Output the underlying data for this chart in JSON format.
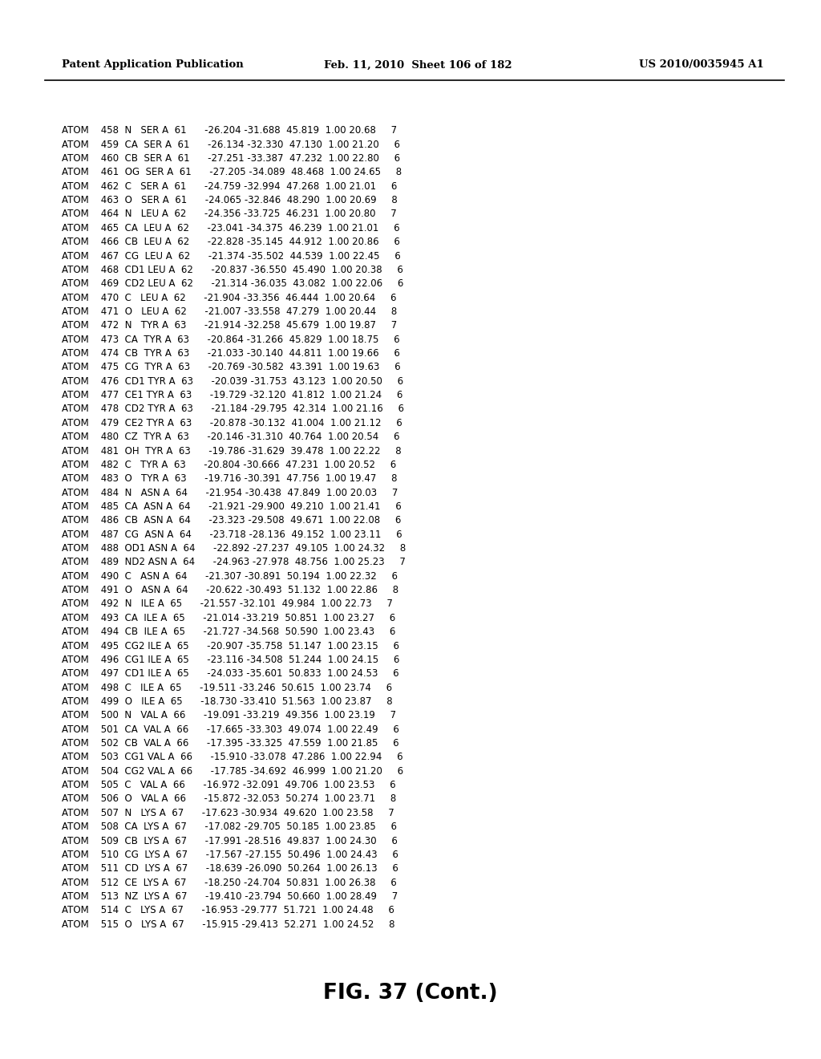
{
  "header_left": "Patent Application Publication",
  "header_middle": "Feb. 11, 2010  Sheet 106 of 182",
  "header_right": "US 2010/0035945 A1",
  "footer": "FIG. 37 (Cont.)",
  "rows": [
    "ATOM    458  N   SER A  61      -26.204 -31.688  45.819  1.00 20.68     7",
    "ATOM    459  CA  SER A  61      -26.134 -32.330  47.130  1.00 21.20     6",
    "ATOM    460  CB  SER A  61      -27.251 -33.387  47.232  1.00 22.80     6",
    "ATOM    461  OG  SER A  61      -27.205 -34.089  48.468  1.00 24.65     8",
    "ATOM    462  C   SER A  61      -24.759 -32.994  47.268  1.00 21.01     6",
    "ATOM    463  O   SER A  61      -24.065 -32.846  48.290  1.00 20.69     8",
    "ATOM    464  N   LEU A  62      -24.356 -33.725  46.231  1.00 20.80     7",
    "ATOM    465  CA  LEU A  62      -23.041 -34.375  46.239  1.00 21.01     6",
    "ATOM    466  CB  LEU A  62      -22.828 -35.145  44.912  1.00 20.86     6",
    "ATOM    467  CG  LEU A  62      -21.374 -35.502  44.539  1.00 22.45     6",
    "ATOM    468  CD1 LEU A  62      -20.837 -36.550  45.490  1.00 20.38     6",
    "ATOM    469  CD2 LEU A  62      -21.314 -36.035  43.082  1.00 22.06     6",
    "ATOM    470  C   LEU A  62      -21.904 -33.356  46.444  1.00 20.64     6",
    "ATOM    471  O   LEU A  62      -21.007 -33.558  47.279  1.00 20.44     8",
    "ATOM    472  N   TYR A  63      -21.914 -32.258  45.679  1.00 19.87     7",
    "ATOM    473  CA  TYR A  63      -20.864 -31.266  45.829  1.00 18.75     6",
    "ATOM    474  CB  TYR A  63      -21.033 -30.140  44.811  1.00 19.66     6",
    "ATOM    475  CG  TYR A  63      -20.769 -30.582  43.391  1.00 19.63     6",
    "ATOM    476  CD1 TYR A  63      -20.039 -31.753  43.123  1.00 20.50     6",
    "ATOM    477  CE1 TYR A  63      -19.729 -32.120  41.812  1.00 21.24     6",
    "ATOM    478  CD2 TYR A  63      -21.184 -29.795  42.314  1.00 21.16     6",
    "ATOM    479  CE2 TYR A  63      -20.878 -30.132  41.004  1.00 21.12     6",
    "ATOM    480  CZ  TYR A  63      -20.146 -31.310  40.764  1.00 20.54     6",
    "ATOM    481  OH  TYR A  63      -19.786 -31.629  39.478  1.00 22.22     8",
    "ATOM    482  C   TYR A  63      -20.804 -30.666  47.231  1.00 20.52     6",
    "ATOM    483  O   TYR A  63      -19.716 -30.391  47.756  1.00 19.47     8",
    "ATOM    484  N   ASN A  64      -21.954 -30.438  47.849  1.00 20.03     7",
    "ATOM    485  CA  ASN A  64      -21.921 -29.900  49.210  1.00 21.41     6",
    "ATOM    486  CB  ASN A  64      -23.323 -29.508  49.671  1.00 22.08     6",
    "ATOM    487  CG  ASN A  64      -23.718 -28.136  49.152  1.00 23.11     6",
    "ATOM    488  OD1 ASN A  64      -22.892 -27.237  49.105  1.00 24.32     8",
    "ATOM    489  ND2 ASN A  64      -24.963 -27.978  48.756  1.00 25.23     7",
    "ATOM    490  C   ASN A  64      -21.307 -30.891  50.194  1.00 22.32     6",
    "ATOM    491  O   ASN A  64      -20.622 -30.493  51.132  1.00 22.86     8",
    "ATOM    492  N   ILE A  65      -21.557 -32.101  49.984  1.00 22.73     7",
    "ATOM    493  CA  ILE A  65      -21.014 -33.219  50.851  1.00 23.27     6",
    "ATOM    494  CB  ILE A  65      -21.727 -34.568  50.590  1.00 23.43     6",
    "ATOM    495  CG2 ILE A  65      -20.907 -35.758  51.147  1.00 23.15     6",
    "ATOM    496  CG1 ILE A  65      -23.116 -34.508  51.244  1.00 24.15     6",
    "ATOM    497  CD1 ILE A  65      -24.033 -35.601  50.833  1.00 24.53     6",
    "ATOM    498  C   ILE A  65      -19.511 -33.246  50.615  1.00 23.74     6",
    "ATOM    499  O   ILE A  65      -18.730 -33.410  51.563  1.00 23.87     8",
    "ATOM    500  N   VAL A  66      -19.091 -33.219  49.356  1.00 23.19     7",
    "ATOM    501  CA  VAL A  66      -17.665 -33.303  49.074  1.00 22.49     6",
    "ATOM    502  CB  VAL A  66      -17.395 -33.325  47.559  1.00 21.85     6",
    "ATOM    503  CG1 VAL A  66      -15.910 -33.078  47.286  1.00 22.94     6",
    "ATOM    504  CG2 VAL A  66      -17.785 -34.692  46.999  1.00 21.20     6",
    "ATOM    505  C   VAL A  66      -16.972 -32.091  49.706  1.00 23.53     6",
    "ATOM    506  O   VAL A  66      -15.872 -32.053  50.274  1.00 23.71     8",
    "ATOM    507  N   LYS A  67      -17.623 -30.934  49.620  1.00 23.58     7",
    "ATOM    508  CA  LYS A  67      -17.082 -29.705  50.185  1.00 23.85     6",
    "ATOM    509  CB  LYS A  67      -17.991 -28.516  49.837  1.00 24.30     6",
    "ATOM    510  CG  LYS A  67      -17.567 -27.155  50.496  1.00 24.43     6",
    "ATOM    511  CD  LYS A  67      -18.639 -26.090  50.264  1.00 26.13     6",
    "ATOM    512  CE  LYS A  67      -18.250 -24.704  50.831  1.00 26.38     6",
    "ATOM    513  NZ  LYS A  67      -19.410 -23.794  50.660  1.00 28.49     7",
    "ATOM    514  C   LYS A  67      -16.953 -29.777  51.721  1.00 24.48     6",
    "ATOM    515  O   LYS A  67      -15.915 -29.413  52.271  1.00 24.52     8"
  ]
}
